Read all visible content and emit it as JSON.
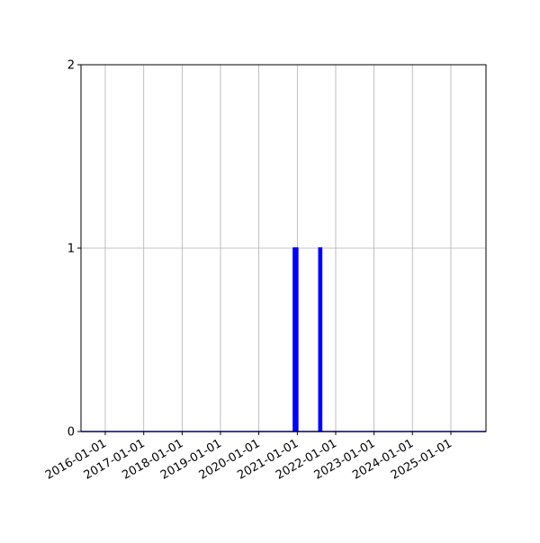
{
  "chart_data": {
    "type": "bar",
    "style": "step histogram (outline only)",
    "title": "",
    "xlabel": "",
    "ylabel": "",
    "x_axis_type": "date",
    "xlim": [
      "2015-05-15",
      "2025-12-01"
    ],
    "ylim": [
      0,
      2
    ],
    "grid": true,
    "legend": "none",
    "color": "#0000ff",
    "x_ticks": [
      "2016-01-01",
      "2017-01-01",
      "2018-01-01",
      "2019-01-01",
      "2020-01-01",
      "2021-01-01",
      "2022-01-01",
      "2023-01-01",
      "2024-01-01",
      "2025-01-01"
    ],
    "y_ticks": [
      "0",
      "1",
      "2"
    ],
    "bins": [
      {
        "start": "2020-11-25",
        "end": "2021-01-05",
        "count": 1
      },
      {
        "start": "2021-07-25",
        "end": "2021-08-20",
        "count": 1
      }
    ]
  }
}
